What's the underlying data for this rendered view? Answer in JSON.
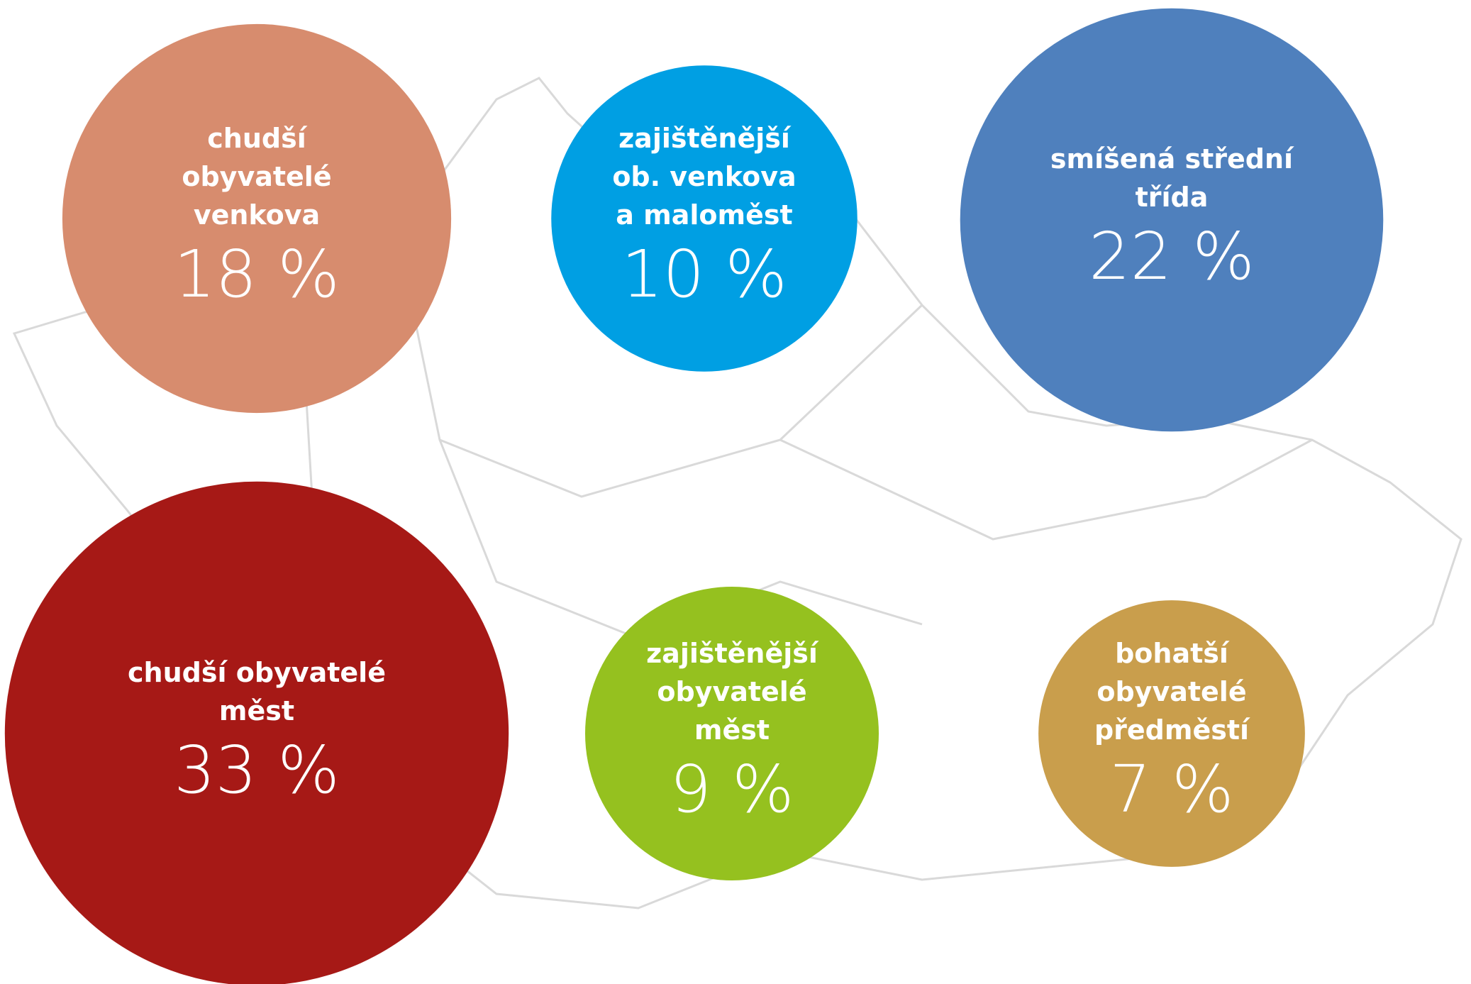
{
  "chart_data": {
    "type": "bubble",
    "categories": [
      [
        "chudší",
        "obyvatelé",
        "venkova"
      ],
      [
        "zajištěnější",
        "ob. venkova",
        "a maloměst"
      ],
      [
        "smíšená střední",
        "třída"
      ],
      [
        "chudší obyvatelé",
        "měst"
      ],
      [
        "zajištěnější",
        "obyvatelé",
        "měst"
      ],
      [
        "bohatší",
        "obyvatelé",
        "předměstí"
      ]
    ],
    "values": [
      18,
      10,
      22,
      33,
      9,
      7
    ],
    "value_labels": [
      "18 %",
      "10 %",
      "22 %",
      "33 %",
      "9 %",
      "7 %"
    ],
    "colors": [
      "#d78c6e",
      "#009fe3",
      "#4f80bd",
      "#a61916",
      "#95c11f",
      "#c99e4c"
    ]
  }
}
